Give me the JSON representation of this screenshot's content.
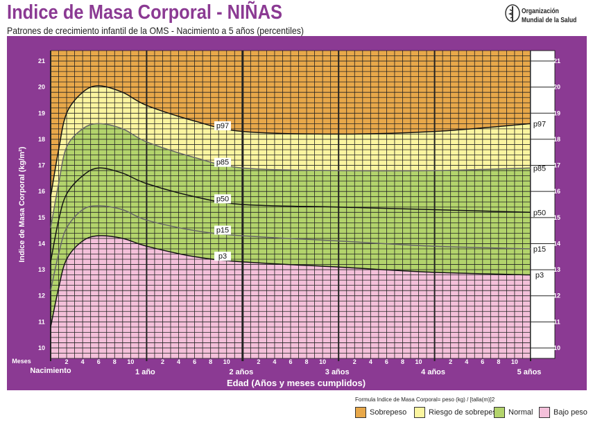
{
  "header": {
    "title": "Indice de Masa Corporal - NIÑAS",
    "subtitle": "Patrones de crecimiento infantil de la OMS - Nacimiento a 5 años (percentiles)",
    "org_line1": "Organización",
    "org_line2": "Mundial de la Salud"
  },
  "footer": {
    "formula": "Formula Indice de Masa Corporal= peso (kg) / [talla(m)]2"
  },
  "legend": [
    {
      "label": "Sobrepeso",
      "color": "#e8a84a"
    },
    {
      "label": "Riesgo de sobrepeso",
      "color": "#fbf5a0"
    },
    {
      "label": "Normal",
      "color": "#b3d46c"
    },
    {
      "label": "Bajo peso",
      "color": "#f4c0da"
    }
  ],
  "chart_data": {
    "type": "line",
    "title": "Indice de Masa Corporal - NIÑAS",
    "xlabel": "Edad (Años y meses cumplidos)",
    "ylabel": "Indice de Masa Corporal (kg/m²)",
    "x_unit_label": "Meses",
    "xlim": [
      0,
      60
    ],
    "ylim": [
      9.6,
      21.4
    ],
    "y_ticks": [
      10,
      11,
      12,
      13,
      14,
      15,
      16,
      17,
      18,
      19,
      20,
      21
    ],
    "month_ticks": [
      "2",
      "4",
      "6",
      "8",
      "10"
    ],
    "year_labels": [
      "Nacimiento",
      "1 año",
      "2 años",
      "3 años",
      "4 años",
      "5 años"
    ],
    "grid": true,
    "x": [
      0,
      1,
      2,
      4,
      6,
      9,
      12,
      18,
      24,
      36,
      48,
      60
    ],
    "series": [
      {
        "name": "p97",
        "values": [
          15.8,
          17.6,
          19.0,
          19.8,
          20.05,
          19.8,
          19.3,
          18.7,
          18.3,
          18.2,
          18.3,
          18.6
        ]
      },
      {
        "name": "p85",
        "values": [
          14.6,
          16.3,
          17.7,
          18.4,
          18.6,
          18.4,
          17.9,
          17.3,
          16.9,
          16.8,
          16.8,
          16.9
        ]
      },
      {
        "name": "p50",
        "values": [
          13.3,
          14.9,
          15.9,
          16.6,
          16.9,
          16.7,
          16.3,
          15.8,
          15.5,
          15.4,
          15.3,
          15.2
        ]
      },
      {
        "name": "p15",
        "values": [
          12.2,
          13.6,
          14.6,
          15.3,
          15.45,
          15.3,
          14.9,
          14.5,
          14.3,
          14.1,
          13.9,
          13.8
        ]
      },
      {
        "name": "p3",
        "values": [
          10.8,
          12.3,
          13.4,
          14.1,
          14.3,
          14.2,
          13.9,
          13.5,
          13.3,
          13.1,
          12.9,
          12.8
        ]
      }
    ]
  }
}
